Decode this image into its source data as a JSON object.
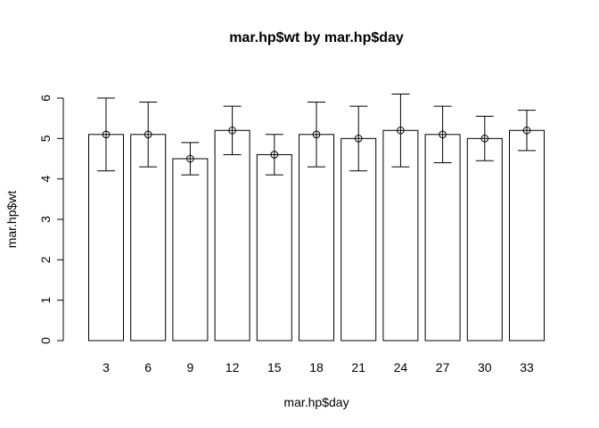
{
  "chart_data": {
    "type": "bar",
    "title": "mar.hp$wt by mar.hp$day",
    "xlabel": "mar.hp$day",
    "ylabel": "mar.hp$wt",
    "categories": [
      "3",
      "6",
      "9",
      "12",
      "15",
      "18",
      "21",
      "24",
      "27",
      "30",
      "33"
    ],
    "values": [
      5.1,
      5.1,
      4.5,
      5.2,
      4.6,
      5.1,
      5.0,
      5.2,
      5.1,
      5.0,
      5.2
    ],
    "error_lower": [
      4.2,
      4.3,
      4.1,
      4.6,
      4.1,
      4.3,
      4.2,
      4.3,
      4.4,
      4.45,
      4.7
    ],
    "error_upper": [
      6.0,
      5.9,
      4.9,
      5.8,
      5.1,
      5.9,
      5.8,
      6.1,
      5.8,
      5.55,
      5.7
    ],
    "ylim": [
      0,
      6
    ],
    "yticks": [
      0,
      1,
      2,
      3,
      4,
      5,
      6
    ],
    "grid": false,
    "legend": "none",
    "colors": {
      "bar_fill": "#ffffff",
      "bar_stroke": "#000000"
    }
  }
}
